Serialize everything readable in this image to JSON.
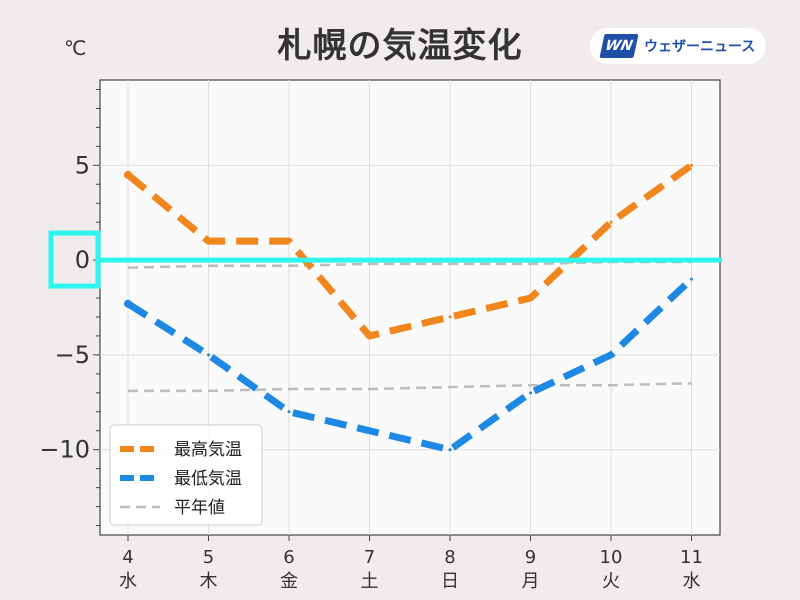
{
  "header": {
    "title": "札幌の気温変化",
    "unit": "℃",
    "logo_mark": "WN",
    "logo_text": "ウェザーニュース"
  },
  "colors": {
    "high": "#f0861c",
    "low": "#1e88e5",
    "normal": "#bdbdbd",
    "highlight": "#2ff5f0",
    "saturday": "#1e88e5",
    "holiday": "#e03c3c"
  },
  "chart_data": {
    "type": "line",
    "title": "札幌の気温変化",
    "ylabel": "℃",
    "xlabel": "",
    "ylim": [
      -14.5,
      9.5
    ],
    "yticks": [
      5,
      0,
      -5,
      -10
    ],
    "ytick_labels": [
      "5",
      "0",
      "−5",
      "−10"
    ],
    "categories": [
      {
        "day": "4",
        "weekday": "水",
        "color": "default"
      },
      {
        "day": "5",
        "weekday": "木",
        "color": "default"
      },
      {
        "day": "6",
        "weekday": "金",
        "color": "default"
      },
      {
        "day": "7",
        "weekday": "土",
        "color": "saturday"
      },
      {
        "day": "8",
        "weekday": "日",
        "color": "holiday"
      },
      {
        "day": "9",
        "weekday": "月",
        "color": "default"
      },
      {
        "day": "10",
        "weekday": "火",
        "color": "default"
      },
      {
        "day": "11",
        "weekday": "水",
        "color": "holiday"
      }
    ],
    "series": [
      {
        "name": "最高気温",
        "key": "high",
        "values": [
          4.5,
          1,
          1,
          -4,
          -3,
          -2,
          2,
          5
        ]
      },
      {
        "name": "最低気温",
        "key": "low",
        "values": [
          -2.3,
          -5,
          -8,
          -9,
          -10,
          -7,
          -5,
          -1
        ]
      },
      {
        "name": "平年値",
        "key": "normal",
        "normal_high": [
          -0.4,
          -0.3,
          -0.3,
          -0.2,
          -0.2,
          -0.2,
          -0.1,
          -0.1
        ],
        "normal_low": [
          -6.9,
          -6.9,
          -6.8,
          -6.8,
          -6.7,
          -6.6,
          -6.6,
          -6.5
        ]
      }
    ],
    "highlight_value": 0,
    "legend_position": "bottom-left",
    "grid": true
  }
}
